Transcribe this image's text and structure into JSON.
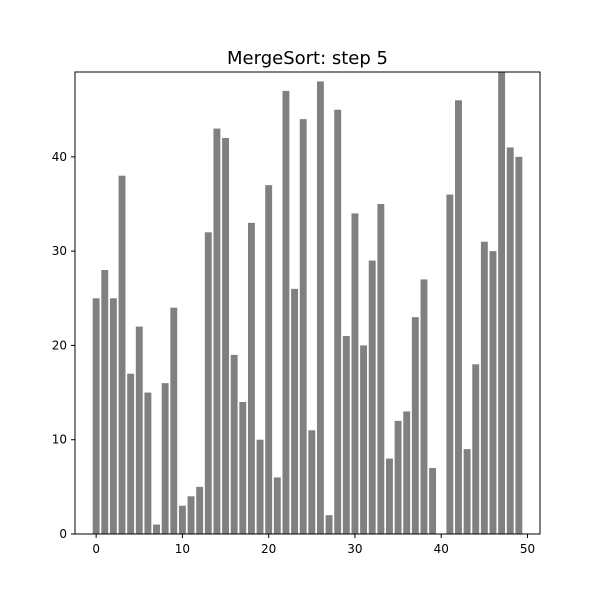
{
  "chart_data": {
    "type": "bar",
    "title": "MergeSort: step 5",
    "xlabel": "",
    "ylabel": "",
    "x": [
      0,
      1,
      2,
      3,
      4,
      5,
      6,
      7,
      8,
      9,
      10,
      11,
      12,
      13,
      14,
      15,
      16,
      17,
      18,
      19,
      20,
      21,
      22,
      23,
      24,
      25,
      26,
      27,
      28,
      29,
      30,
      31,
      32,
      33,
      34,
      35,
      36,
      37,
      38,
      39,
      40,
      41,
      42,
      43,
      44,
      45,
      46,
      47,
      48,
      49
    ],
    "values": [
      25,
      28,
      25,
      38,
      17,
      22,
      15,
      1,
      16,
      24,
      3,
      4,
      5,
      32,
      43,
      42,
      19,
      14,
      33,
      10,
      37,
      6,
      47,
      26,
      44,
      11,
      48,
      2,
      45,
      21,
      34,
      20,
      29,
      35,
      8,
      12,
      13,
      23,
      27,
      7,
      0,
      36,
      46,
      9,
      18,
      31,
      30,
      49,
      41,
      40
    ],
    "xlim": [
      -2.45,
      51.45
    ],
    "ylim": [
      0,
      49
    ],
    "x_ticks": [
      0,
      10,
      20,
      30,
      40,
      50
    ],
    "y_ticks": [
      0,
      10,
      20,
      30,
      40
    ],
    "grid": false,
    "bar_color": "#808080"
  }
}
